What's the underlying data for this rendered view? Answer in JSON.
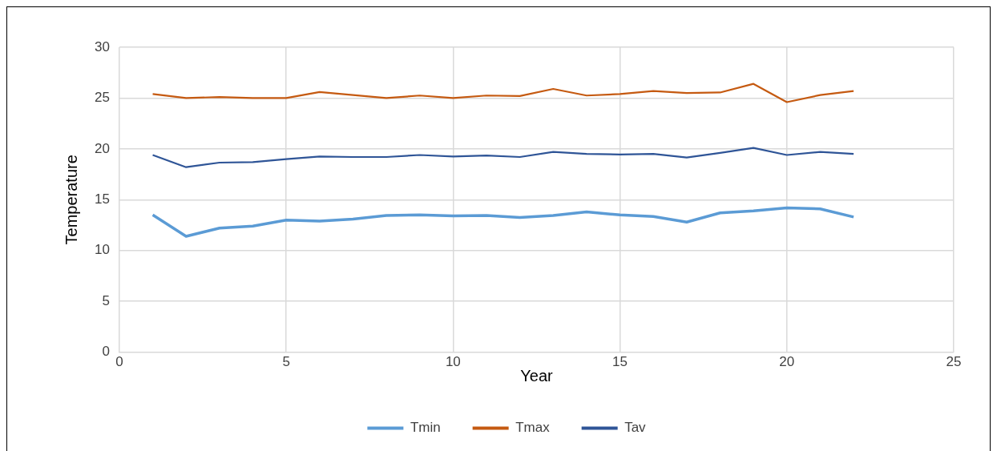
{
  "chart_data": {
    "type": "line",
    "xlabel": "Year",
    "ylabel": "Temperature",
    "x": [
      1,
      2,
      3,
      4,
      5,
      6,
      7,
      8,
      9,
      10,
      11,
      12,
      13,
      14,
      15,
      16,
      17,
      18,
      19,
      20,
      21,
      22
    ],
    "series": [
      {
        "name": "Tmin",
        "color": "#5b9bd5",
        "values": [
          13.5,
          11.4,
          12.2,
          12.4,
          13.0,
          12.9,
          13.1,
          13.45,
          13.5,
          13.4,
          13.45,
          13.25,
          13.45,
          13.8,
          13.5,
          13.35,
          12.8,
          13.7,
          13.9,
          14.2,
          14.1,
          13.3
        ]
      },
      {
        "name": "Tmax",
        "color": "#c55a11",
        "values": [
          25.4,
          25.0,
          25.1,
          25.0,
          25.0,
          25.6,
          25.3,
          25.0,
          25.25,
          25.0,
          25.25,
          25.2,
          25.9,
          25.25,
          25.4,
          25.7,
          25.5,
          25.55,
          26.4,
          24.6,
          25.3,
          25.7
        ]
      },
      {
        "name": "Tav",
        "color": "#2f5597",
        "values": [
          19.4,
          18.2,
          18.65,
          18.7,
          19.0,
          19.25,
          19.2,
          19.2,
          19.4,
          19.25,
          19.35,
          19.2,
          19.7,
          19.5,
          19.45,
          19.5,
          19.15,
          19.6,
          20.1,
          19.4,
          19.7,
          19.5
        ]
      }
    ],
    "xlim": [
      0,
      25
    ],
    "xticks": [
      0,
      5,
      10,
      15,
      20,
      25
    ],
    "ylim": [
      0,
      30
    ],
    "yticks": [
      0,
      5,
      10,
      15,
      20,
      25,
      30
    ],
    "grid": true,
    "legend": "bottom",
    "marker": "none",
    "line_style": "solid"
  }
}
